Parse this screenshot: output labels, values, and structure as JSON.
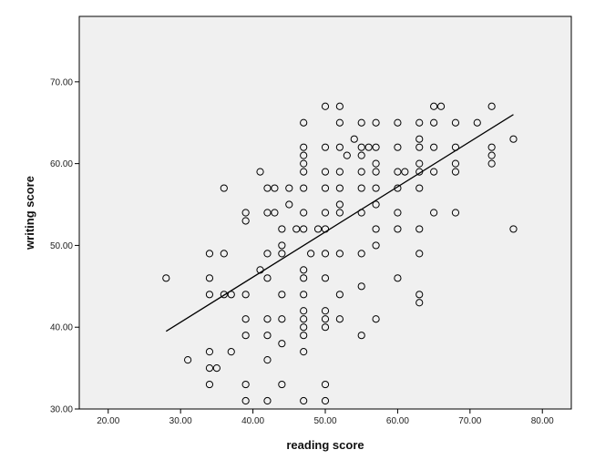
{
  "chart_data": {
    "type": "scatter",
    "title": "",
    "xlabel": "reading score",
    "ylabel": "writing score",
    "xlim": [
      16,
      84
    ],
    "ylim": [
      30,
      78
    ],
    "x_ticks": [
      20,
      30,
      40,
      50,
      60,
      70,
      80
    ],
    "x_tick_labels": [
      "20.00",
      "30.00",
      "40.00",
      "50.00",
      "60.00",
      "70.00",
      "80.00"
    ],
    "y_ticks": [
      30,
      40,
      50,
      60,
      70
    ],
    "y_tick_labels": [
      "30.00",
      "40.00",
      "50.00",
      "60.00",
      "70.00"
    ],
    "colors": {
      "plot_background": "#f0f0f0",
      "marker_stroke": "#000000",
      "fit_line": "#000000"
    },
    "fit_line": {
      "x": [
        28,
        76
      ],
      "y": [
        39.5,
        66
      ]
    },
    "points": [
      [
        28,
        46
      ],
      [
        31,
        36
      ],
      [
        34,
        33
      ],
      [
        34,
        35
      ],
      [
        34,
        37
      ],
      [
        34,
        44
      ],
      [
        34,
        46
      ],
      [
        34,
        49
      ],
      [
        35,
        35
      ],
      [
        36,
        44
      ],
      [
        36,
        49
      ],
      [
        36,
        57
      ],
      [
        37,
        37
      ],
      [
        37,
        44
      ],
      [
        39,
        31
      ],
      [
        39,
        33
      ],
      [
        39,
        39
      ],
      [
        39,
        41
      ],
      [
        39,
        44
      ],
      [
        39,
        53
      ],
      [
        39,
        54
      ],
      [
        41,
        47
      ],
      [
        41,
        59
      ],
      [
        42,
        31
      ],
      [
        42,
        36
      ],
      [
        42,
        39
      ],
      [
        42,
        41
      ],
      [
        42,
        46
      ],
      [
        42,
        49
      ],
      [
        42,
        54
      ],
      [
        42,
        57
      ],
      [
        43,
        54
      ],
      [
        43,
        57
      ],
      [
        44,
        33
      ],
      [
        44,
        38
      ],
      [
        44,
        41
      ],
      [
        44,
        44
      ],
      [
        44,
        49
      ],
      [
        44,
        50
      ],
      [
        44,
        52
      ],
      [
        45,
        55
      ],
      [
        45,
        57
      ],
      [
        46,
        52
      ],
      [
        47,
        31
      ],
      [
        47,
        37
      ],
      [
        47,
        39
      ],
      [
        47,
        40
      ],
      [
        47,
        41
      ],
      [
        47,
        42
      ],
      [
        47,
        44
      ],
      [
        47,
        46
      ],
      [
        47,
        47
      ],
      [
        47,
        52
      ],
      [
        47,
        54
      ],
      [
        47,
        57
      ],
      [
        47,
        59
      ],
      [
        47,
        60
      ],
      [
        47,
        61
      ],
      [
        47,
        62
      ],
      [
        47,
        65
      ],
      [
        48,
        49
      ],
      [
        49,
        52
      ],
      [
        50,
        31
      ],
      [
        50,
        33
      ],
      [
        50,
        40
      ],
      [
        50,
        41
      ],
      [
        50,
        42
      ],
      [
        50,
        46
      ],
      [
        50,
        49
      ],
      [
        50,
        52
      ],
      [
        50,
        54
      ],
      [
        50,
        57
      ],
      [
        50,
        59
      ],
      [
        50,
        62
      ],
      [
        50,
        67
      ],
      [
        52,
        41
      ],
      [
        52,
        44
      ],
      [
        52,
        49
      ],
      [
        52,
        54
      ],
      [
        52,
        55
      ],
      [
        52,
        57
      ],
      [
        52,
        59
      ],
      [
        52,
        62
      ],
      [
        52,
        65
      ],
      [
        52,
        67
      ],
      [
        53,
        61
      ],
      [
        54,
        63
      ],
      [
        55,
        39
      ],
      [
        55,
        45
      ],
      [
        55,
        49
      ],
      [
        55,
        54
      ],
      [
        55,
        57
      ],
      [
        55,
        59
      ],
      [
        55,
        61
      ],
      [
        55,
        62
      ],
      [
        55,
        65
      ],
      [
        56,
        62
      ],
      [
        57,
        41
      ],
      [
        57,
        50
      ],
      [
        57,
        52
      ],
      [
        57,
        55
      ],
      [
        57,
        57
      ],
      [
        57,
        59
      ],
      [
        57,
        60
      ],
      [
        57,
        62
      ],
      [
        57,
        65
      ],
      [
        60,
        46
      ],
      [
        60,
        52
      ],
      [
        60,
        54
      ],
      [
        60,
        57
      ],
      [
        60,
        59
      ],
      [
        60,
        62
      ],
      [
        60,
        65
      ],
      [
        61,
        59
      ],
      [
        63,
        43
      ],
      [
        63,
        44
      ],
      [
        63,
        49
      ],
      [
        63,
        52
      ],
      [
        63,
        57
      ],
      [
        63,
        59
      ],
      [
        63,
        60
      ],
      [
        63,
        62
      ],
      [
        63,
        63
      ],
      [
        63,
        65
      ],
      [
        65,
        54
      ],
      [
        65,
        59
      ],
      [
        65,
        62
      ],
      [
        65,
        65
      ],
      [
        65,
        67
      ],
      [
        66,
        67
      ],
      [
        68,
        54
      ],
      [
        68,
        59
      ],
      [
        68,
        60
      ],
      [
        68,
        62
      ],
      [
        68,
        65
      ],
      [
        71,
        65
      ],
      [
        73,
        60
      ],
      [
        73,
        61
      ],
      [
        73,
        62
      ],
      [
        73,
        67
      ],
      [
        76,
        52
      ],
      [
        76,
        63
      ]
    ]
  }
}
